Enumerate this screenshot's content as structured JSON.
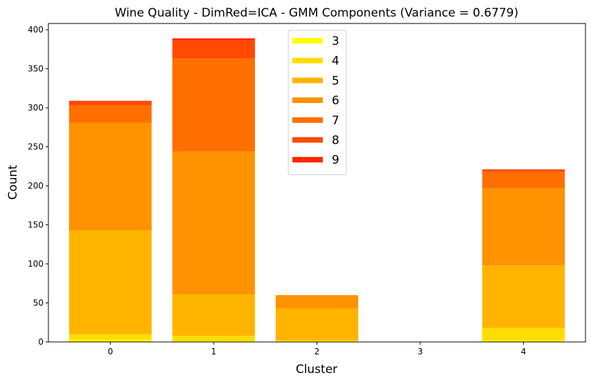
{
  "chart_data": {
    "type": "bar",
    "stacked": true,
    "title": "Wine Quality - DimRed=ICA - GMM Components (Variance = 0.6779)",
    "xlabel": "Cluster",
    "ylabel": "Count",
    "categories": [
      "0",
      "1",
      "2",
      "3",
      "4"
    ],
    "ylim": [
      0,
      408
    ],
    "yticks": [
      0,
      50,
      100,
      150,
      200,
      250,
      300,
      350,
      400
    ],
    "series": [
      {
        "name": "3",
        "color": "#ffff00",
        "values": [
          3,
          1,
          1,
          0,
          2
        ]
      },
      {
        "name": "4",
        "color": "#ffdd00",
        "values": [
          7,
          7,
          1,
          0,
          16
        ]
      },
      {
        "name": "5",
        "color": "#ffb400",
        "values": [
          133,
          53,
          41,
          0,
          80
        ]
      },
      {
        "name": "6",
        "color": "#ff9200",
        "values": [
          138,
          183,
          17,
          0,
          99
        ]
      },
      {
        "name": "7",
        "color": "#ff6f00",
        "values": [
          22,
          119,
          0,
          0,
          21
        ]
      },
      {
        "name": "8",
        "color": "#ff4a00",
        "values": [
          6,
          23,
          0,
          0,
          2
        ]
      },
      {
        "name": "9",
        "color": "#ff2700",
        "values": [
          0,
          3,
          0,
          0,
          1
        ]
      }
    ],
    "legend_position": "top-center",
    "grid": false
  }
}
